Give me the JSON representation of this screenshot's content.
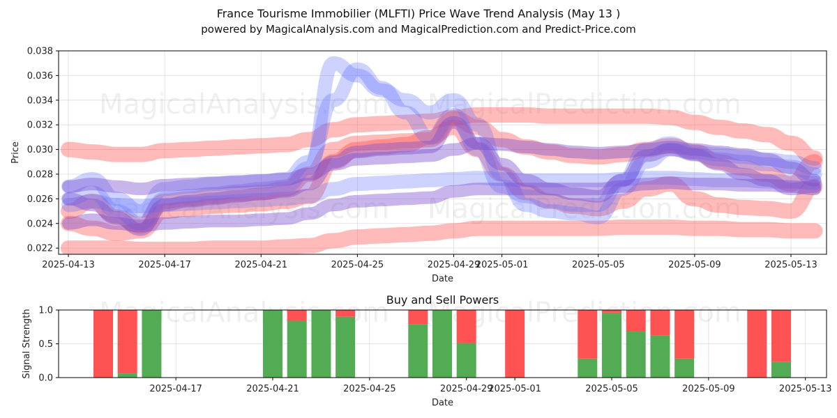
{
  "header": {
    "title": "France Tourisme Immobilier (MLFTI) Price Wave Trend Analysis (May 13 )",
    "subtitle": "powered by MagicalAnalysis.com and MagicalPrediction.com and Predict-Price.com"
  },
  "watermarks": [
    "MagicalAnalysis.com",
    "MagicalPrediction.com"
  ],
  "colors": {
    "red": "#ff4a4a",
    "blue": "#5b6bff",
    "green": "#4aa84a",
    "purple": "#7a4fd0"
  },
  "chart_data": [
    {
      "type": "area",
      "name": "price-wave",
      "xlabel": "Date",
      "ylabel": "Price",
      "x_ticks": [
        "2025-04-13",
        "2025-04-17",
        "2025-04-21",
        "2025-04-25",
        "2025-04-29",
        "2025-05-01",
        "2025-05-05",
        "2025-05-09",
        "2025-05-13"
      ],
      "y_ticks": [
        "0.022",
        "0.024",
        "0.026",
        "0.028",
        "0.030",
        "0.032",
        "0.034",
        "0.036",
        "0.038"
      ],
      "xlim": [
        "2025-04-13",
        "2025-05-14"
      ],
      "ylim": [
        0.0215,
        0.038
      ],
      "grid": true,
      "dates": [
        "2025-04-13",
        "2025-04-14",
        "2025-04-15",
        "2025-04-16",
        "2025-04-17",
        "2025-04-18",
        "2025-04-19",
        "2025-04-20",
        "2025-04-21",
        "2025-04-22",
        "2025-04-23",
        "2025-04-24",
        "2025-04-25",
        "2025-04-26",
        "2025-04-27",
        "2025-04-28",
        "2025-04-29",
        "2025-04-30",
        "2025-05-01",
        "2025-05-02",
        "2025-05-03",
        "2025-05-04",
        "2025-05-05",
        "2025-05-06",
        "2025-05-07",
        "2025-05-08",
        "2025-05-09",
        "2025-05-10",
        "2025-05-11",
        "2025-05-12",
        "2025-05-13",
        "2025-05-14"
      ],
      "series": [
        {
          "color": "red",
          "values": [
            0.03,
            0.0298,
            0.0296,
            0.0296,
            0.0299,
            0.03,
            0.0301,
            0.0302,
            0.0303,
            0.0304,
            0.0308,
            0.0316,
            0.032,
            0.0321,
            0.0322,
            0.0323,
            0.0326,
            0.0328,
            0.0328,
            0.0328,
            0.0327,
            0.0327,
            0.0327,
            0.0327,
            0.0327,
            0.0326,
            0.0322,
            0.0318,
            0.0315,
            0.0312,
            0.0305,
            0.0293
          ]
        },
        {
          "color": "red",
          "values": [
            0.022,
            0.022,
            0.022,
            0.0219,
            0.0219,
            0.0219,
            0.022,
            0.022,
            0.022,
            0.0221,
            0.0222,
            0.0226,
            0.0229,
            0.023,
            0.0231,
            0.0232,
            0.0234,
            0.0236,
            0.0236,
            0.0236,
            0.0236,
            0.0236,
            0.0236,
            0.0237,
            0.0237,
            0.0237,
            0.0236,
            0.0236,
            0.0235,
            0.0235,
            0.0234,
            0.0234
          ]
        },
        {
          "color": "red",
          "values": [
            0.025,
            0.0258,
            0.0245,
            0.0238,
            0.0258,
            0.026,
            0.0262,
            0.0264,
            0.0265,
            0.0268,
            0.028,
            0.03,
            0.0305,
            0.0306,
            0.0307,
            0.0308,
            0.0325,
            0.0318,
            0.0308,
            0.0302,
            0.0298,
            0.0295,
            0.0294,
            0.0296,
            0.03,
            0.0303,
            0.0298,
            0.029,
            0.0285,
            0.028,
            0.0272,
            0.029
          ]
        },
        {
          "color": "red",
          "values": [
            0.024,
            0.0236,
            0.0232,
            0.0234,
            0.025,
            0.0252,
            0.0254,
            0.0255,
            0.0256,
            0.0258,
            0.0262,
            0.029,
            0.03,
            0.0302,
            0.0304,
            0.031,
            0.0318,
            0.03,
            0.028,
            0.0265,
            0.0258,
            0.0254,
            0.0252,
            0.0258,
            0.0268,
            0.0272,
            0.026,
            0.0255,
            0.0253,
            0.0252,
            0.025,
            0.027
          ]
        },
        {
          "color": "blue",
          "values": [
            0.026,
            0.0265,
            0.025,
            0.024,
            0.026,
            0.0262,
            0.0264,
            0.0266,
            0.0268,
            0.027,
            0.0285,
            0.037,
            0.036,
            0.0348,
            0.034,
            0.033,
            0.034,
            0.032,
            0.028,
            0.0255,
            0.025,
            0.0248,
            0.0245,
            0.0268,
            0.029,
            0.03,
            0.0298,
            0.0296,
            0.0294,
            0.0292,
            0.029,
            0.0285
          ]
        },
        {
          "color": "blue",
          "values": [
            0.0255,
            0.0258,
            0.0255,
            0.0254,
            0.0255,
            0.0256,
            0.0257,
            0.0258,
            0.0259,
            0.026,
            0.0262,
            0.0268,
            0.0272,
            0.0273,
            0.0274,
            0.0275,
            0.0276,
            0.0277,
            0.0276,
            0.0275,
            0.0275,
            0.0275,
            0.0275,
            0.0276,
            0.0277,
            0.0277,
            0.0276,
            0.0275,
            0.0275,
            0.0274,
            0.0274,
            0.0273
          ]
        },
        {
          "color": "blue",
          "values": [
            0.027,
            0.0276,
            0.026,
            0.025,
            0.0268,
            0.027,
            0.0272,
            0.0273,
            0.0274,
            0.0276,
            0.029,
            0.034,
            0.0365,
            0.035,
            0.033,
            0.031,
            0.0328,
            0.03,
            0.027,
            0.0262,
            0.0258,
            0.0255,
            0.0255,
            0.0275,
            0.03,
            0.0305,
            0.0296,
            0.0292,
            0.029,
            0.0288,
            0.0286,
            0.028
          ]
        },
        {
          "color": "purple",
          "values": [
            0.027,
            0.0272,
            0.027,
            0.0268,
            0.0271,
            0.0272,
            0.0273,
            0.0274,
            0.0275,
            0.0276,
            0.028,
            0.0288,
            0.0292,
            0.0293,
            0.0294,
            0.0295,
            0.03,
            0.0305,
            0.0304,
            0.0302,
            0.03,
            0.0298,
            0.0297,
            0.0298,
            0.03,
            0.0302,
            0.03,
            0.0298,
            0.0296,
            0.0292,
            0.0285,
            0.0275
          ]
        },
        {
          "color": "purple",
          "values": [
            0.024,
            0.0243,
            0.024,
            0.0238,
            0.024,
            0.0241,
            0.0242,
            0.0242,
            0.0243,
            0.0244,
            0.0248,
            0.0255,
            0.0258,
            0.0259,
            0.026,
            0.0261,
            0.0266,
            0.0268,
            0.0268,
            0.0268,
            0.0268,
            0.0268,
            0.0268,
            0.027,
            0.0272,
            0.0273,
            0.0272,
            0.0272,
            0.0271,
            0.0271,
            0.027,
            0.0268
          ]
        },
        {
          "color": "purple",
          "values": [
            0.026,
            0.0255,
            0.0245,
            0.0235,
            0.0255,
            0.0258,
            0.026,
            0.0262,
            0.0264,
            0.0266,
            0.0272,
            0.029,
            0.0298,
            0.03,
            0.0301,
            0.0302,
            0.0322,
            0.0305,
            0.0288,
            0.0275,
            0.0268,
            0.0264,
            0.0262,
            0.0275,
            0.0295,
            0.03,
            0.0296,
            0.0288,
            0.028,
            0.0275,
            0.0268,
            0.027
          ]
        }
      ]
    },
    {
      "type": "bar",
      "name": "buy-sell-powers",
      "title": "Buy and Sell Powers",
      "xlabel": "Date",
      "ylabel": "Signal Strength",
      "x_ticks": [
        "2025-04-17",
        "2025-04-21",
        "2025-04-25",
        "2025-04-29",
        "2025-05-01",
        "2025-05-05",
        "2025-05-09",
        "2025-05-13"
      ],
      "y_ticks": [
        "0.0",
        "0.5",
        "1.0"
      ],
      "ylim": [
        0,
        1.0
      ],
      "grid": true,
      "bars": [
        {
          "date": "2025-04-14",
          "buy": 0.0
        },
        {
          "date": "2025-04-15",
          "buy": 0.06
        },
        {
          "date": "2025-04-16",
          "buy": 1.0
        },
        {
          "date": "2025-04-21",
          "buy": 1.0
        },
        {
          "date": "2025-04-22",
          "buy": 0.84
        },
        {
          "date": "2025-04-23",
          "buy": 1.0
        },
        {
          "date": "2025-04-24",
          "buy": 0.9
        },
        {
          "date": "2025-04-27",
          "buy": 0.79
        },
        {
          "date": "2025-04-28",
          "buy": 1.0
        },
        {
          "date": "2025-04-29",
          "buy": 0.51
        },
        {
          "date": "2025-05-01",
          "buy": 0.0
        },
        {
          "date": "2025-05-04",
          "buy": 0.28
        },
        {
          "date": "2025-05-05",
          "buy": 0.96
        },
        {
          "date": "2025-05-06",
          "buy": 0.68
        },
        {
          "date": "2025-05-07",
          "buy": 0.62
        },
        {
          "date": "2025-05-08",
          "buy": 0.28
        },
        {
          "date": "2025-05-11",
          "buy": 0.0
        },
        {
          "date": "2025-05-12",
          "buy": 0.23
        }
      ]
    }
  ]
}
